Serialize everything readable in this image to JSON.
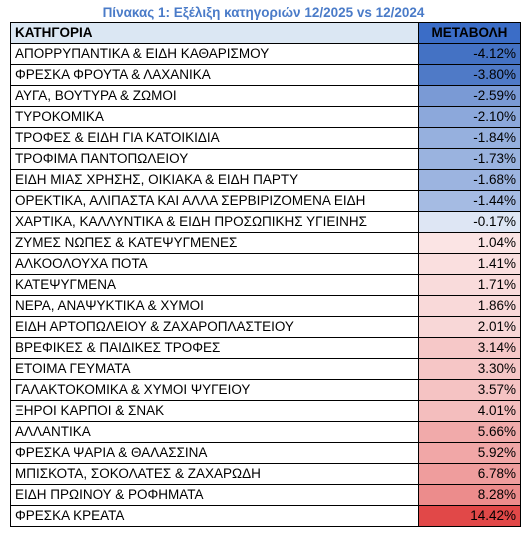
{
  "title": "Πίνακας 1: Εξέλιξη κατηγοριών 12/2025 vs 12/2024",
  "headers": {
    "category": "ΚΑΤΗΓΟΡΙΑ",
    "change": "ΜΕΤΑΒΟΛΗ"
  },
  "colors": {
    "title": "#4a7bc8",
    "header_category_bg": "#dbe7f3",
    "header_change_bg": "#3b6dc7",
    "negative_max": "#4472c4",
    "positive_max": "#e14848",
    "neutral": "#ffffff"
  },
  "chart_data": {
    "type": "table",
    "title": "Πίνακας 1: Εξέλιξη κατηγοριών 12/2025 vs 12/2024",
    "columns": [
      "ΚΑΤΗΓΟΡΙΑ",
      "ΜΕΤΑΒΟΛΗ"
    ],
    "rows": [
      {
        "category": "ΑΠΟΡΡΥΠΑΝΤΙΚΑ & ΕΙΔΗ ΚΑΘΑΡΙΣΜΟΥ",
        "value": -4.12,
        "label": "-4.12%"
      },
      {
        "category": "ΦΡΕΣΚΑ ΦΡΟΥΤΑ & ΛΑΧΑΝΙΚΑ",
        "value": -3.8,
        "label": "-3.80%"
      },
      {
        "category": "ΑΥΓΑ, ΒΟΥΤΥΡΑ & ΖΩΜΟΙ",
        "value": -2.59,
        "label": "-2.59%"
      },
      {
        "category": "ΤΥΡΟΚΟΜΙΚΑ",
        "value": -2.1,
        "label": "-2.10%"
      },
      {
        "category": "ΤΡΟΦΕΣ & ΕΙΔΗ ΓΙΑ ΚΑΤΟΙΚΙΔΙΑ",
        "value": -1.84,
        "label": "-1.84%"
      },
      {
        "category": "ΤΡΟΦΙΜΑ ΠΑΝΤΟΠΩΛΕΙΟΥ",
        "value": -1.73,
        "label": "-1.73%"
      },
      {
        "category": "ΕΙΔΗ ΜΙΑΣ ΧΡΗΣΗΣ, ΟΙΚΙΑΚΑ & ΕΙΔΗ ΠΑΡΤΥ",
        "value": -1.68,
        "label": "-1.68%"
      },
      {
        "category": "ΟΡΕΚΤΙΚΑ, ΑΛΙΠΑΣΤΑ ΚΑΙ ΑΛΛΑ ΣΕΡΒΙΡΙΖΟΜΕΝΑ ΕΙΔΗ",
        "value": -1.44,
        "label": "-1.44%"
      },
      {
        "category": "ΧΑΡΤΙΚΑ, ΚΑΛΛΥΝΤΙΚΑ & ΕΙΔΗ ΠΡΟΣΩΠΙΚΗΣ ΥΓΙΕΙΝΗΣ",
        "value": -0.17,
        "label": "-0.17%"
      },
      {
        "category": "ΖΥΜΕΣ ΝΩΠΕΣ & ΚΑΤΕΨΥΓΜΕΝΕΣ",
        "value": 1.04,
        "label": "1.04%"
      },
      {
        "category": "ΑΛΚΟΟΛΟΥΧΑ ΠΟΤΑ",
        "value": 1.41,
        "label": "1.41%"
      },
      {
        "category": "ΚΑΤΕΨΥΓΜΕΝΑ",
        "value": 1.71,
        "label": "1.71%"
      },
      {
        "category": "ΝΕΡΑ, ΑΝΑΨΥΚΤΙΚΑ & ΧΥΜΟΙ",
        "value": 1.86,
        "label": "1.86%"
      },
      {
        "category": "ΕΙΔΗ ΑΡΤΟΠΩΛΕΙΟΥ & ΖΑΧΑΡΟΠΛΑΣΤΕΙΟΥ",
        "value": 2.01,
        "label": "2.01%"
      },
      {
        "category": "ΒΡΕΦΙΚΕΣ & ΠΑΙΔΙΚΕΣ ΤΡΟΦΕΣ",
        "value": 3.14,
        "label": "3.14%"
      },
      {
        "category": "ΕΤΟΙΜΑ ΓΕΥΜΑΤΑ",
        "value": 3.3,
        "label": "3.30%"
      },
      {
        "category": "ΓΑΛΑΚΤΟΚΟΜΙΚΑ & ΧΥΜΟΙ ΨΥΓΕΙΟΥ",
        "value": 3.57,
        "label": "3.57%"
      },
      {
        "category": "ΞΗΡΟΙ ΚΑΡΠΟΙ & ΣΝΑΚ",
        "value": 4.01,
        "label": "4.01%"
      },
      {
        "category": "ΑΛΛΑΝΤΙΚΑ",
        "value": 5.66,
        "label": "5.66%"
      },
      {
        "category": "ΦΡΕΣΚΑ ΨΑΡΙΑ & ΘΑΛΑΣΣΙΝΑ",
        "value": 5.92,
        "label": "5.92%"
      },
      {
        "category": "ΜΠΙΣΚΟΤΑ, ΣΟΚΟΛΑΤΕΣ & ΖΑΧΑΡΩΔΗ",
        "value": 6.78,
        "label": "6.78%"
      },
      {
        "category": "ΕΙΔΗ ΠΡΩΙΝΟΥ & ΡΟΦΗΜΑΤΑ",
        "value": 8.28,
        "label": "8.28%"
      },
      {
        "category": "ΦΡΕΣΚΑ ΚΡΕΑΤΑ",
        "value": 14.42,
        "label": "14.42%"
      }
    ]
  }
}
